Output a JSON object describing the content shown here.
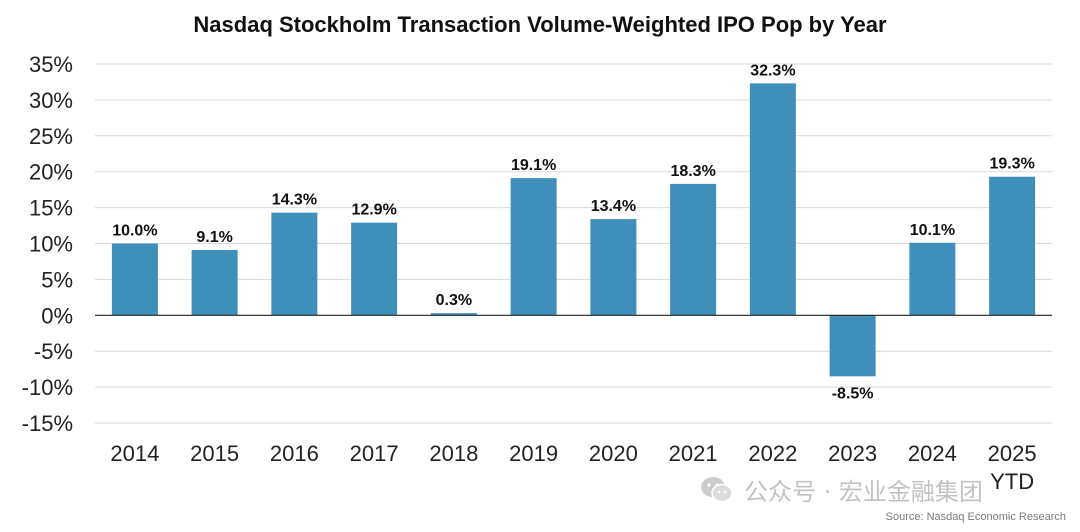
{
  "chart_data": {
    "type": "bar",
    "title": "Nasdaq Stockholm Transaction Volume-Weighted IPO Pop by Year",
    "categories": [
      "2014",
      "2015",
      "2016",
      "2017",
      "2018",
      "2019",
      "2020",
      "2021",
      "2022",
      "2023",
      "2024",
      "2025 YTD"
    ],
    "values": [
      10.0,
      9.1,
      14.3,
      12.9,
      0.3,
      19.1,
      13.4,
      18.3,
      32.3,
      -8.5,
      10.1,
      19.3
    ],
    "data_labels": [
      "10.0%",
      "9.1%",
      "14.3%",
      "12.9%",
      "0.3%",
      "19.1%",
      "13.4%",
      "18.3%",
      "32.3%",
      "-8.5%",
      "10.1%",
      "19.3%"
    ],
    "yticks": [
      35,
      30,
      25,
      20,
      15,
      10,
      5,
      0,
      -5,
      -10,
      -15
    ],
    "ytick_labels": [
      "35%",
      "30%",
      "25%",
      "20%",
      "15%",
      "10%",
      "5%",
      "0%",
      "-5%",
      "-10%",
      "-15%"
    ],
    "ylim": [
      -15,
      35
    ],
    "xlabel": "",
    "ylabel": "",
    "grid": true,
    "bar_color": "#3f8fbb",
    "grid_color": "#d9d9d9"
  },
  "watermark": {
    "text": "公众号 · 宏业金融集团",
    "icon": "wechat-icon"
  },
  "source": "Source: Nasdaq Economic Research"
}
